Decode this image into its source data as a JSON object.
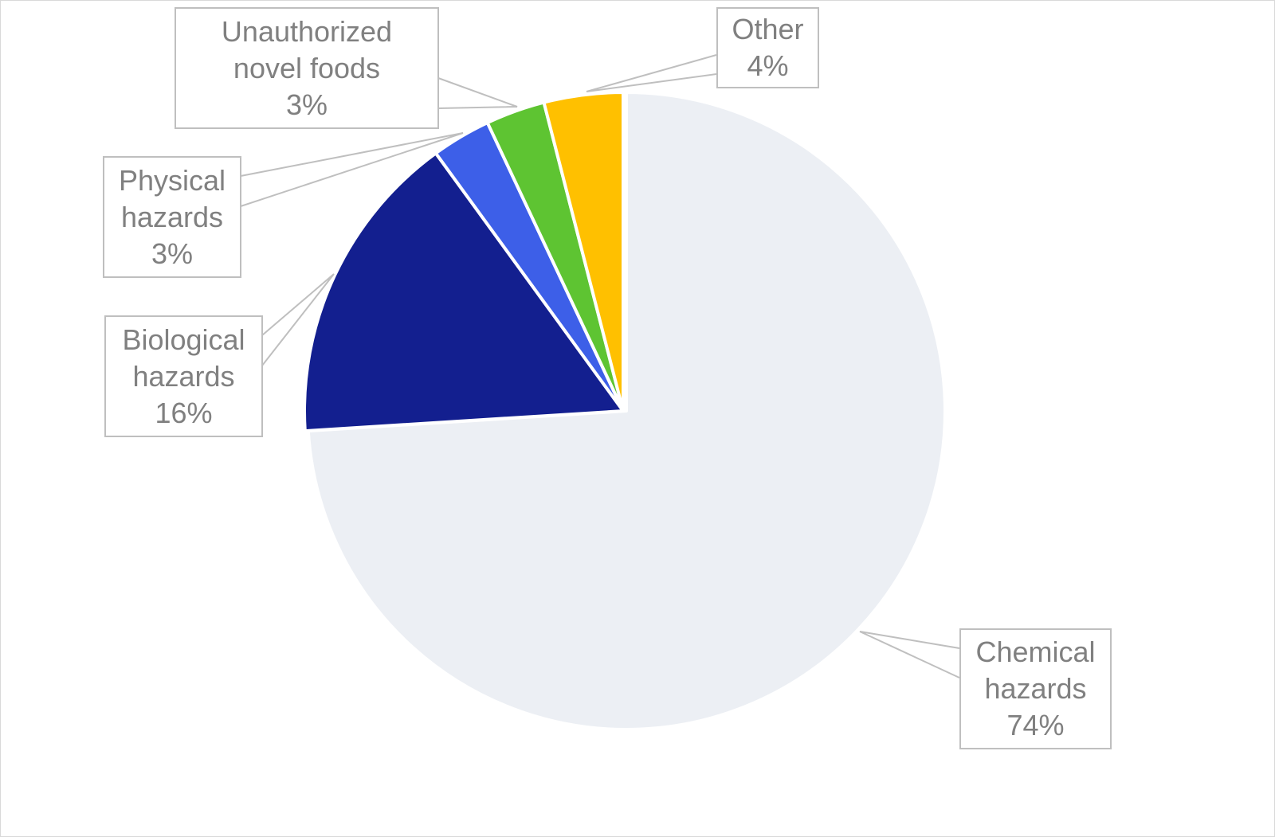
{
  "chart_data": {
    "type": "pie",
    "start_angle": "12 o'clock",
    "direction": "clockwise",
    "slices": [
      {
        "name": "Chemical hazards",
        "label_lines": [
          "Chemical",
          "hazards"
        ],
        "value": 74,
        "value_label": "74%",
        "color": "#ECEFF4"
      },
      {
        "name": "Biological hazards",
        "label_lines": [
          "Biological",
          "hazards"
        ],
        "value": 16,
        "value_label": "16%",
        "color": "#131F8F"
      },
      {
        "name": "Physical hazards",
        "label_lines": [
          "Physical",
          "hazards"
        ],
        "value": 3,
        "value_label": "3%",
        "color": "#3D5FE8"
      },
      {
        "name": "Unauthorized novel foods",
        "label_lines": [
          "Unauthorized",
          "novel foods"
        ],
        "value": 3,
        "value_label": "3%",
        "color": "#5EC432"
      },
      {
        "name": "Other",
        "label_lines": [
          "Other"
        ],
        "value": 4,
        "value_label": "4%",
        "color": "#FFC000"
      }
    ],
    "label_color": "#808080",
    "callout_border_color": "#BFBFBF"
  }
}
